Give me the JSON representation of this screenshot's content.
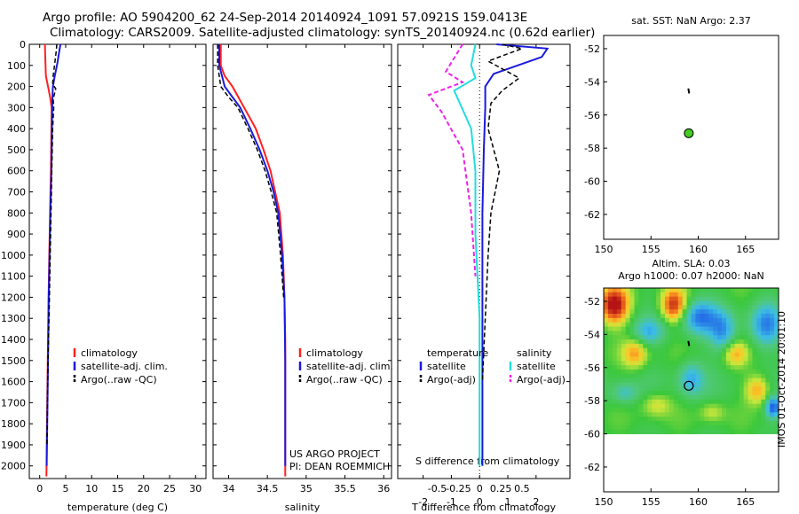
{
  "header": {
    "line1": "Argo profile: AO 5904200_62 24-Sep-2014 20140924_1091 57.0921S 159.0413E",
    "line2": "Climatology: CARS2009. Satellite-adjusted climatology: synTS_20140924.nc (0.62d earlier)"
  },
  "colors": {
    "climatology": "#ff2020",
    "satellite": "#1a1adc",
    "argo": "#000000",
    "sal_sat": "#22dddd",
    "sal_argo": "#ee22ee"
  },
  "chart_data": [
    {
      "type": "line",
      "xlabel": "temperature (deg C)",
      "ylabel": "",
      "xlim": [
        -2,
        32
      ],
      "ylim": [
        2060,
        0
      ],
      "xticks": [
        "0",
        "5",
        "10",
        "15",
        "20",
        "25",
        "30"
      ],
      "yticks": [
        "0",
        "100",
        "200",
        "300",
        "400",
        "500",
        "600",
        "700",
        "800",
        "900",
        "1000",
        "1100",
        "1200",
        "1300",
        "1400",
        "1500",
        "1600",
        "1700",
        "1800",
        "1900",
        "2000"
      ],
      "legend": [
        "climatology",
        "satellite-adj. clim.",
        "Argo(..raw -QC)"
      ],
      "series": [
        {
          "name": "climatology",
          "x": [
            1.0,
            1.05,
            1.2,
            1.6,
            2.0,
            2.3,
            2.25,
            2.15,
            2.0,
            1.85,
            1.7,
            1.55,
            1.4,
            1.3
          ],
          "y": [
            0,
            50,
            150,
            200,
            250,
            300,
            400,
            600,
            800,
            1000,
            1200,
            1500,
            1800,
            2050
          ]
        },
        {
          "name": "satellite-adj. clim.",
          "x": [
            4.0,
            3.8,
            3.4,
            2.9,
            2.55,
            2.45,
            2.35,
            2.25,
            2.05,
            1.9,
            1.75,
            1.6,
            1.45,
            1.35
          ],
          "y": [
            0,
            30,
            90,
            150,
            200,
            250,
            400,
            600,
            800,
            1000,
            1200,
            1500,
            1800,
            2000
          ]
        },
        {
          "name": "Argo(..raw -QC)",
          "x": [
            3.3,
            3.2,
            2.9,
            2.6,
            2.5,
            3.1,
            2.6,
            2.7,
            2.5,
            2.4,
            2.25,
            2.1,
            1.95,
            1.8,
            1.6,
            1.5,
            1.4
          ],
          "y": [
            0,
            30,
            90,
            150,
            190,
            210,
            260,
            300,
            400,
            500,
            700,
            900,
            1100,
            1300,
            1500,
            1700,
            1900
          ]
        }
      ]
    },
    {
      "type": "line",
      "xlabel": "salinity",
      "xlim": [
        33.8,
        36.1
      ],
      "ylim": [
        2060,
        0
      ],
      "xticks": [
        "34",
        "34.5",
        "35",
        "35.5",
        "36"
      ],
      "legend": [
        "climatology",
        "satellite-adj. clim.",
        "Argo(..raw -QC)"
      ],
      "annotation": [
        "US ARGO PROJECT",
        "PI: DEAN ROEMMICH"
      ],
      "series": [
        {
          "name": "climatology",
          "x": [
            33.9,
            33.9,
            33.95,
            34.05,
            34.2,
            34.35,
            34.45,
            34.54,
            34.6,
            34.66,
            34.7,
            34.72,
            34.73,
            34.73,
            34.73
          ],
          "y": [
            0,
            100,
            150,
            200,
            300,
            400,
            500,
            600,
            700,
            800,
            1000,
            1200,
            1400,
            1700,
            2050
          ]
        },
        {
          "name": "satellite-adj. clim.",
          "x": [
            33.88,
            33.88,
            33.95,
            34.05,
            34.15,
            34.28,
            34.4,
            34.5,
            34.58,
            34.64,
            34.69,
            34.72,
            34.73,
            34.73
          ],
          "y": [
            0,
            100,
            200,
            250,
            300,
            400,
            500,
            600,
            700,
            800,
            1000,
            1200,
            1500,
            2000
          ]
        },
        {
          "name": "Argo(..raw -QC)",
          "x": [
            33.86,
            33.86,
            33.9,
            34.0,
            34.12,
            34.25,
            34.37,
            34.47,
            34.55,
            34.62,
            34.67,
            34.71
          ],
          "y": [
            0,
            100,
            200,
            250,
            300,
            400,
            500,
            600,
            700,
            800,
            1000,
            1200
          ]
        }
      ]
    },
    {
      "type": "line",
      "xlabel": "T difference from climatology",
      "xlabel2": "S difference from climatology",
      "xlim": [
        -2.9,
        3.2
      ],
      "ylim": [
        2060,
        0
      ],
      "xticks": [
        "-2",
        "-1",
        "0",
        "1",
        "2"
      ],
      "xticks2": [
        "-0.5",
        "-0.25",
        "0",
        "0.25",
        "0.5"
      ],
      "legend": [
        "temperature",
        "satellite",
        "Argo(-adj)",
        "salinity",
        "satellite",
        "Argo(-adj)"
      ],
      "series": [
        {
          "name": "temperature satellite",
          "x": [
            0.6,
            2.4,
            2.2,
            0.5,
            0.2,
            0.2,
            0.15,
            0.1,
            0.1,
            0.1,
            0.1,
            0.1
          ],
          "y": [
            0,
            20,
            60,
            140,
            200,
            300,
            500,
            800,
            1100,
            1400,
            1700,
            2000
          ]
        },
        {
          "name": "temperature Argo(-adj)",
          "x": [
            0.8,
            1.5,
            0.3,
            1.4,
            0.8,
            0.4,
            0.3,
            0.7,
            0.4,
            0.3,
            0.2,
            0.1
          ],
          "y": [
            0,
            20,
            80,
            160,
            220,
            280,
            400,
            600,
            800,
            1000,
            1300,
            1600
          ]
        },
        {
          "name": "salinity satellite",
          "x": [
            -0.05,
            -0.1,
            -0.05,
            -0.3,
            -0.1,
            -0.05,
            -0.05,
            0.0,
            0.0
          ],
          "y": [
            0,
            100,
            160,
            220,
            400,
            600,
            900,
            1300,
            2000
          ]
        },
        {
          "name": "salinity Argo(-adj)",
          "x": [
            -0.2,
            -0.4,
            -0.2,
            -0.6,
            -0.45,
            -0.2,
            -0.1,
            -0.05
          ],
          "y": [
            0,
            130,
            180,
            240,
            320,
            500,
            800,
            1100
          ]
        }
      ]
    },
    {
      "type": "scatter",
      "title": "sat. SST: NaN Argo: 2.37",
      "xlim": [
        150,
        168.5
      ],
      "ylim": [
        -63.5,
        -51.2
      ],
      "xticks": [
        "150",
        "155",
        "160",
        "165"
      ],
      "yticks": [
        "-52",
        "-54",
        "-56",
        "-58",
        "-60",
        "-62"
      ],
      "points": [
        {
          "x": 159.0,
          "y": -57.1
        }
      ]
    },
    {
      "type": "heatmap",
      "title": "Altim. SLA: 0.03",
      "subtitle": "Argo h1000: 0.07 h2000: NaN",
      "side_label": "IMOS 01-Oct-2014 20:01:10",
      "xlim": [
        150,
        168.5
      ],
      "ylim": [
        -63.5,
        -51.2
      ],
      "xticks": [
        "150",
        "155",
        "160",
        "165"
      ],
      "yticks": [
        "-52",
        "-54",
        "-56",
        "-58",
        "-60",
        "-62"
      ],
      "points": [
        {
          "x": 159.0,
          "y": -57.1
        }
      ]
    }
  ]
}
